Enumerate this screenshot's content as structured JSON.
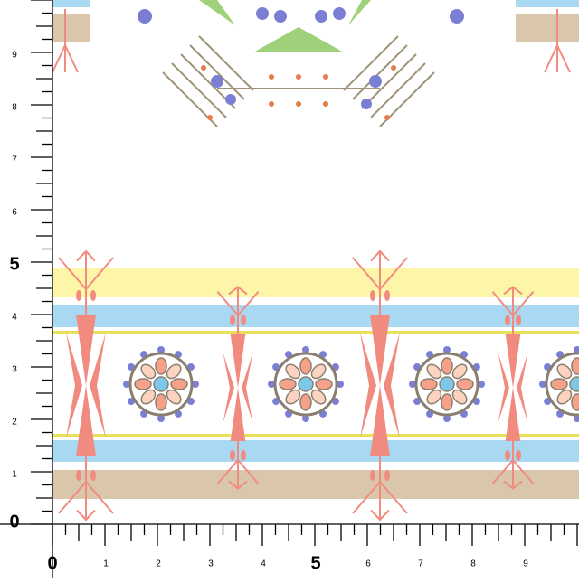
{
  "ruler": {
    "left": [
      "0",
      "1",
      "2",
      "3",
      "4",
      "5",
      "6",
      "7",
      "8",
      "9"
    ],
    "bottom": [
      "0",
      "1",
      "2",
      "3",
      "4",
      "5",
      "6",
      "7",
      "8",
      "9"
    ]
  }
}
